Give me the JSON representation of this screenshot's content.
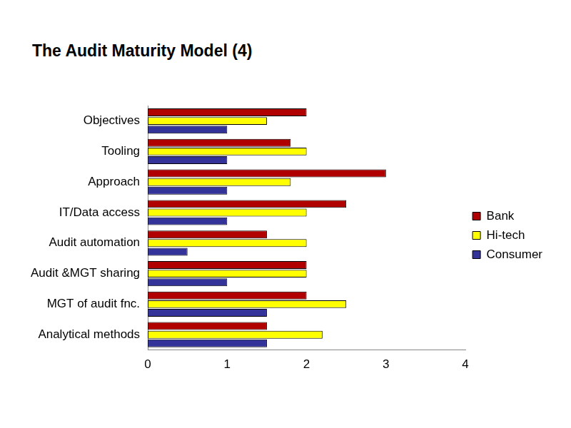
{
  "chart_data": {
    "type": "bar",
    "title": "The Audit Maturity Model (4)",
    "orientation": "horizontal",
    "categories": [
      "Objectives",
      "Tooling",
      "Approach",
      "IT/Data access",
      "Audit automation",
      "Audit &MGT sharing",
      "MGT of audit fnc.",
      "Analytical methods"
    ],
    "series": [
      {
        "name": "Bank",
        "color": "#b00000",
        "values": [
          2,
          1.8,
          3,
          2.5,
          1.5,
          2,
          2,
          1.5
        ]
      },
      {
        "name": "Hi-tech",
        "color": "#ffff00",
        "values": [
          1.5,
          2,
          1.8,
          2,
          2,
          2,
          2.5,
          2.2
        ]
      },
      {
        "name": "Consumer",
        "color": "#333399",
        "values": [
          1,
          1,
          1,
          1,
          0.5,
          1,
          1.5,
          1.5
        ]
      }
    ],
    "xlim": [
      0,
      4
    ],
    "xticks": [
      0,
      1,
      2,
      3,
      4
    ],
    "grid": false,
    "legend": "right"
  }
}
